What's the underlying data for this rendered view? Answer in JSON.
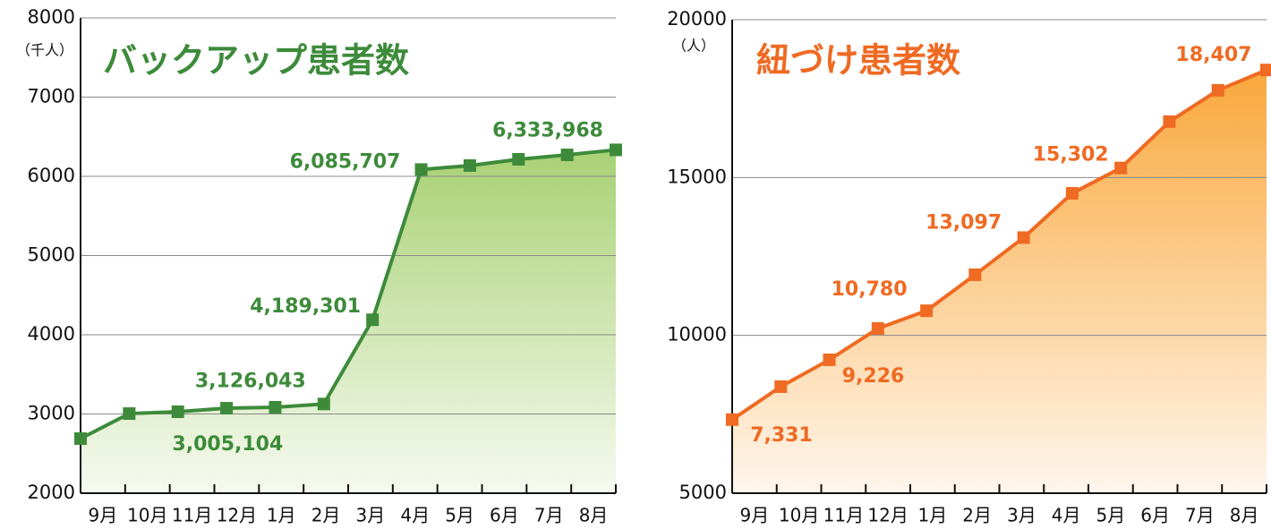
{
  "chart_data": [
    {
      "type": "line",
      "title": "バックアップ患者数",
      "y_label": "（千人）",
      "categories": [
        "9月",
        "10月",
        "11月",
        "12月",
        "1月",
        "2月",
        "3月",
        "4月",
        "5月",
        "6月",
        "7月",
        "8月"
      ],
      "values": [
        2689,
        3005.104,
        3028,
        3073,
        3085,
        3126.043,
        4189.301,
        6085.707,
        6136,
        6215,
        6271,
        6333.968
      ],
      "value_labels": [
        null,
        "3,005,104",
        null,
        null,
        null,
        "3,126,043",
        "4,189,301",
        "6,085,707",
        null,
        null,
        null,
        "6,333,968"
      ],
      "color": "#3d8b3a",
      "area": true,
      "ylim": [
        2000,
        8000
      ],
      "yticks": [
        2000,
        3000,
        4000,
        5000,
        6000,
        7000,
        8000
      ],
      "grid": true
    },
    {
      "type": "line",
      "title": "紐づけ患者数",
      "y_label": "（人）",
      "categories": [
        "9月",
        "10月",
        "11月",
        "12月",
        "1月",
        "2月",
        "3月",
        "4月",
        "5月",
        "6月",
        "7月",
        "8月"
      ],
      "values": [
        7331,
        8375,
        9226,
        10218,
        10780,
        11920,
        13097,
        14501,
        15302,
        16770,
        17763,
        18407
      ],
      "value_labels": [
        "7,331",
        null,
        "9,226",
        null,
        "10,780",
        null,
        "13,097",
        null,
        "15,302",
        null,
        null,
        "18,407"
      ],
      "color": "#ef6a22",
      "area": true,
      "ylim": [
        5000,
        20000
      ],
      "yticks": [
        5000,
        10000,
        15000,
        20000
      ],
      "grid": true
    }
  ]
}
